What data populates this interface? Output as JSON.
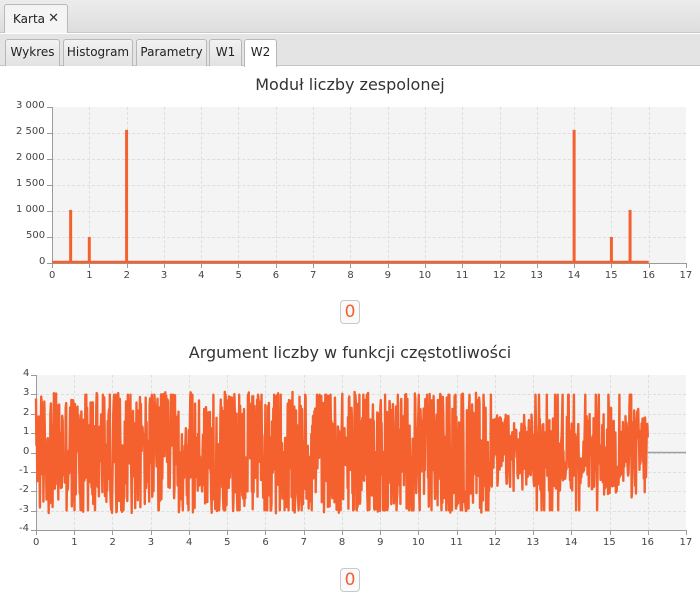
{
  "window_tab": {
    "label": "Karta",
    "close_glyph": "✕"
  },
  "tabs": [
    {
      "label": "Wykres"
    },
    {
      "label": "Histogram"
    },
    {
      "label": "Parametry"
    },
    {
      "label": "W1"
    },
    {
      "label": "W2",
      "active": true
    }
  ],
  "colors": {
    "series": "#f4612e",
    "plot_bg": "#f4f4f4",
    "axis": "#9a9a9a"
  },
  "zero_badges": [
    "0",
    "0"
  ],
  "chart_data": [
    {
      "type": "line",
      "title": "Moduł liczby zespolonej",
      "xlabel": "",
      "ylabel": "",
      "xlim": [
        0,
        17
      ],
      "ylim": [
        0,
        3000
      ],
      "x_ticks": [
        0,
        1,
        2,
        3,
        4,
        5,
        6,
        7,
        8,
        9,
        10,
        11,
        12,
        13,
        14,
        15,
        16,
        17
      ],
      "y_ticks": [
        0,
        500,
        1000,
        1500,
        2000,
        2500,
        3000
      ],
      "y_tick_labels": [
        "0",
        "500",
        "1 000",
        "1 500",
        "2 000",
        "2 500",
        "3 000"
      ],
      "grid": true,
      "baseline": {
        "x": [
          0,
          16
        ],
        "y": 0
      },
      "peaks": [
        {
          "x": 0.5,
          "y": 1020
        },
        {
          "x": 1.0,
          "y": 500
        },
        {
          "x": 2.0,
          "y": 2560
        },
        {
          "x": 14.0,
          "y": 2560
        },
        {
          "x": 15.0,
          "y": 500
        },
        {
          "x": 15.5,
          "y": 1020
        }
      ]
    },
    {
      "type": "line",
      "title": "Argument liczby w funkcji częstotliwości",
      "xlabel": "",
      "ylabel": "",
      "xlim": [
        0,
        17
      ],
      "ylim": [
        -4,
        4
      ],
      "x_ticks": [
        0,
        1,
        2,
        3,
        4,
        5,
        6,
        7,
        8,
        9,
        10,
        11,
        12,
        13,
        14,
        15,
        16,
        17
      ],
      "y_ticks": [
        -4,
        -3,
        -2,
        -1,
        0,
        1,
        2,
        3,
        4
      ],
      "grid": true,
      "series_range": {
        "x": [
          0,
          16
        ],
        "y": [
          -3.14,
          3.14
        ]
      },
      "tail": {
        "x": [
          16,
          17
        ],
        "y": 0
      }
    }
  ]
}
